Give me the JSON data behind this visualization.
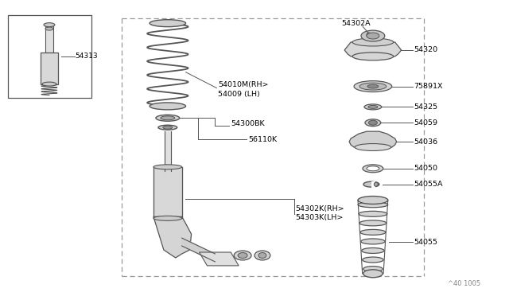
{
  "bg_color": "#ffffff",
  "fig_number": "^40 1005",
  "parts": {
    "small_box_part": "54313",
    "coil_spring_rh": "54010M(RH>",
    "coil_spring_lh": "54009 (LH)",
    "strut_bearing": "54300BK",
    "shock_absorber": "56110K",
    "strut_rh": "54302K(RH>",
    "strut_lh": "54303K(LH>",
    "top_mount": "54302A",
    "strut_mount": "54320",
    "bearing": "75891X",
    "spring_seat": "54325",
    "bump_stop": "54059",
    "dust_cover_top": "54036",
    "bound_bumper": "54050",
    "snap_ring": "54055A",
    "dust_boot": "54055"
  },
  "line_color": "#555555",
  "text_color": "#000000",
  "dashed_line_color": "#999999"
}
